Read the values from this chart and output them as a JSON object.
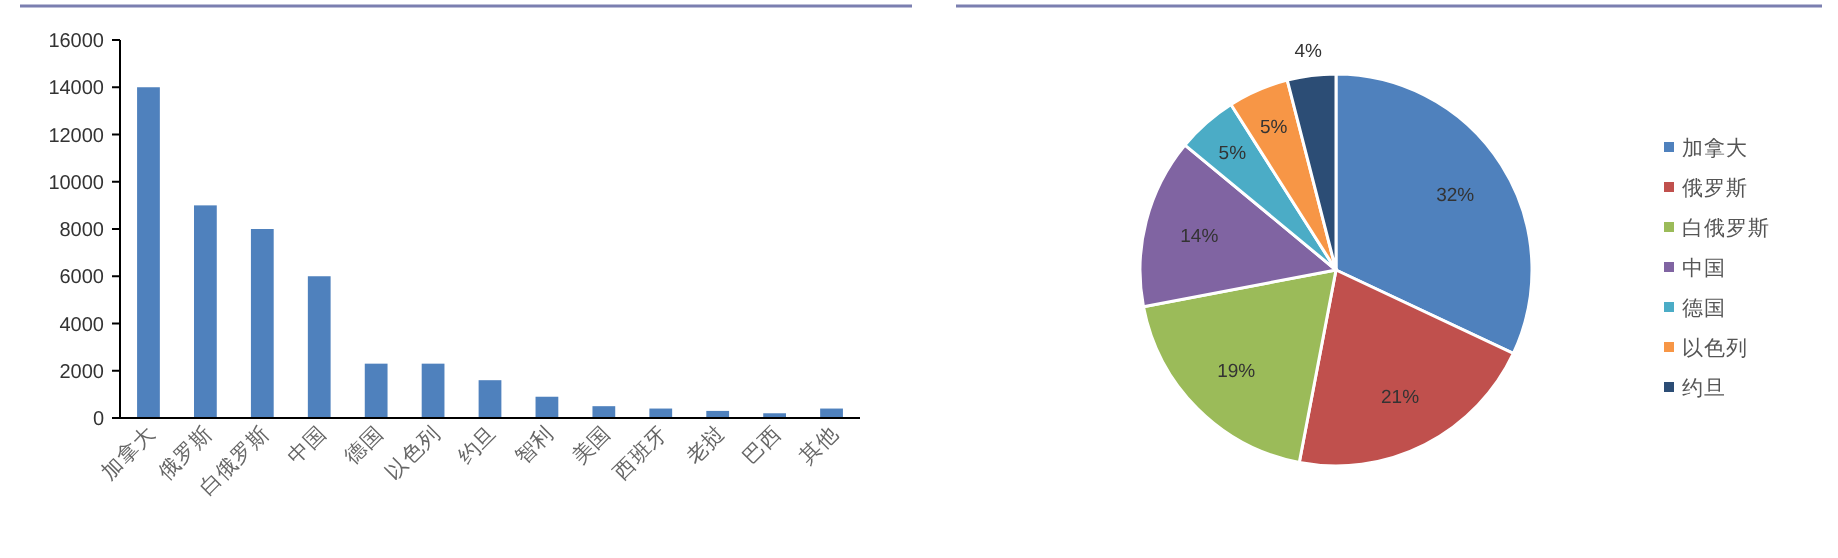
{
  "chart_data": [
    {
      "type": "bar",
      "categories": [
        "加拿大",
        "俄罗斯",
        "白俄罗斯",
        "中国",
        "德国",
        "以色列",
        "约旦",
        "智利",
        "美国",
        "西班牙",
        "老挝",
        "巴西",
        "其他"
      ],
      "values": [
        14000,
        9000,
        8000,
        6000,
        2300,
        2300,
        1600,
        900,
        500,
        400,
        300,
        200,
        400
      ],
      "color": "#4f81bd",
      "ylim": [
        0,
        16000
      ],
      "yticks": [
        0,
        2000,
        4000,
        6000,
        8000,
        10000,
        12000,
        14000,
        16000
      ],
      "grid": false,
      "legend": false
    },
    {
      "type": "pie",
      "categories": [
        "加拿大",
        "俄罗斯",
        "白俄罗斯",
        "中国",
        "德国",
        "以色列",
        "约旦"
      ],
      "values": [
        32,
        21,
        19,
        14,
        5,
        5,
        4
      ],
      "colors": [
        "#4f81bd",
        "#c0504d",
        "#9bbb59",
        "#8064a2",
        "#4bacc6",
        "#f79646",
        "#2c4d75"
      ],
      "value_labels": [
        "32%",
        "21%",
        "19%",
        "14%",
        "5%",
        "5%",
        "4%"
      ],
      "legend": "right"
    }
  ]
}
